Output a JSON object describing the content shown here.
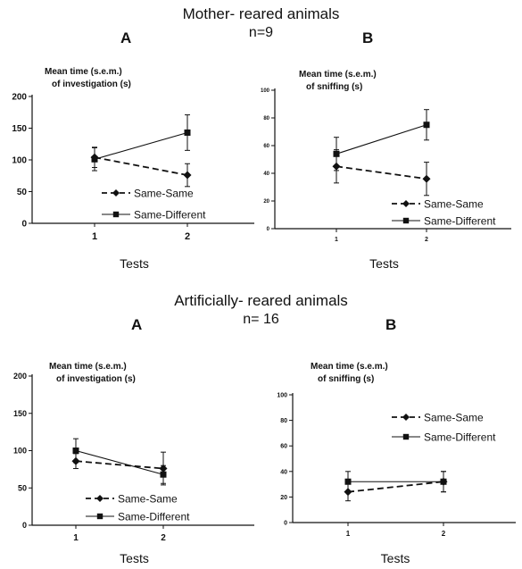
{
  "sections": [
    {
      "title": "Mother- reared animals",
      "subtitle": "n=9"
    },
    {
      "title": "Artificially- reared animals",
      "subtitle": "n= 16"
    }
  ],
  "chart_data": [
    {
      "type": "line",
      "panel_label": "A",
      "title": "Mean time (s.e.m.)\nof investigation (s)",
      "xlabel": "Tests",
      "categories": [
        "1",
        "2"
      ],
      "ylim": [
        0,
        200
      ],
      "yticks": [
        0,
        50,
        100,
        150,
        200
      ],
      "series": [
        {
          "name": "Same-Same",
          "values": [
            104,
            76
          ],
          "errors": [
            16,
            18
          ],
          "marker": "diamond",
          "dash": "dashed"
        },
        {
          "name": "Same-Different",
          "values": [
            101,
            143
          ],
          "errors": [
            18,
            28
          ],
          "marker": "square",
          "dash": "solid"
        }
      ]
    },
    {
      "type": "line",
      "panel_label": "B",
      "title": "Mean time (s.e.m.)\nof sniffing (s)",
      "xlabel": "Tests",
      "categories": [
        "1",
        "2"
      ],
      "ylim": [
        0,
        100
      ],
      "yticks": [
        0,
        20,
        40,
        60,
        80,
        100
      ],
      "series": [
        {
          "name": "Same-Same",
          "values": [
            45,
            36
          ],
          "errors": [
            12,
            12
          ],
          "marker": "diamond",
          "dash": "dashed"
        },
        {
          "name": "Same-Different",
          "values": [
            54,
            75
          ],
          "errors": [
            12,
            11
          ],
          "marker": "square",
          "dash": "solid"
        }
      ]
    },
    {
      "type": "line",
      "panel_label": "A",
      "title": "Mean time (s.e.m.)\nof investigation (s)",
      "xlabel": "Tests",
      "categories": [
        "1",
        "2"
      ],
      "ylim": [
        0,
        200
      ],
      "yticks": [
        0,
        50,
        100,
        150,
        200
      ],
      "series": [
        {
          "name": "Same-Same",
          "values": [
            86,
            76
          ],
          "errors": [
            10,
            22
          ],
          "marker": "diamond",
          "dash": "dashed"
        },
        {
          "name": "Same-Different",
          "values": [
            100,
            68
          ],
          "errors": [
            16,
            12
          ],
          "marker": "square",
          "dash": "solid"
        }
      ]
    },
    {
      "type": "line",
      "panel_label": "B",
      "title": "Mean time (s.e.m.)\nof sniffing (s)",
      "xlabel": "Tests",
      "categories": [
        "1",
        "2"
      ],
      "ylim": [
        0,
        100
      ],
      "yticks": [
        0,
        20,
        40,
        60,
        80,
        100
      ],
      "series": [
        {
          "name": "Same-Same",
          "values": [
            24,
            32
          ],
          "errors": [
            7,
            8
          ],
          "marker": "diamond",
          "dash": "dashed"
        },
        {
          "name": "Same-Different",
          "values": [
            32,
            32
          ],
          "errors": [
            8,
            8
          ],
          "marker": "square",
          "dash": "solid"
        }
      ]
    }
  ]
}
